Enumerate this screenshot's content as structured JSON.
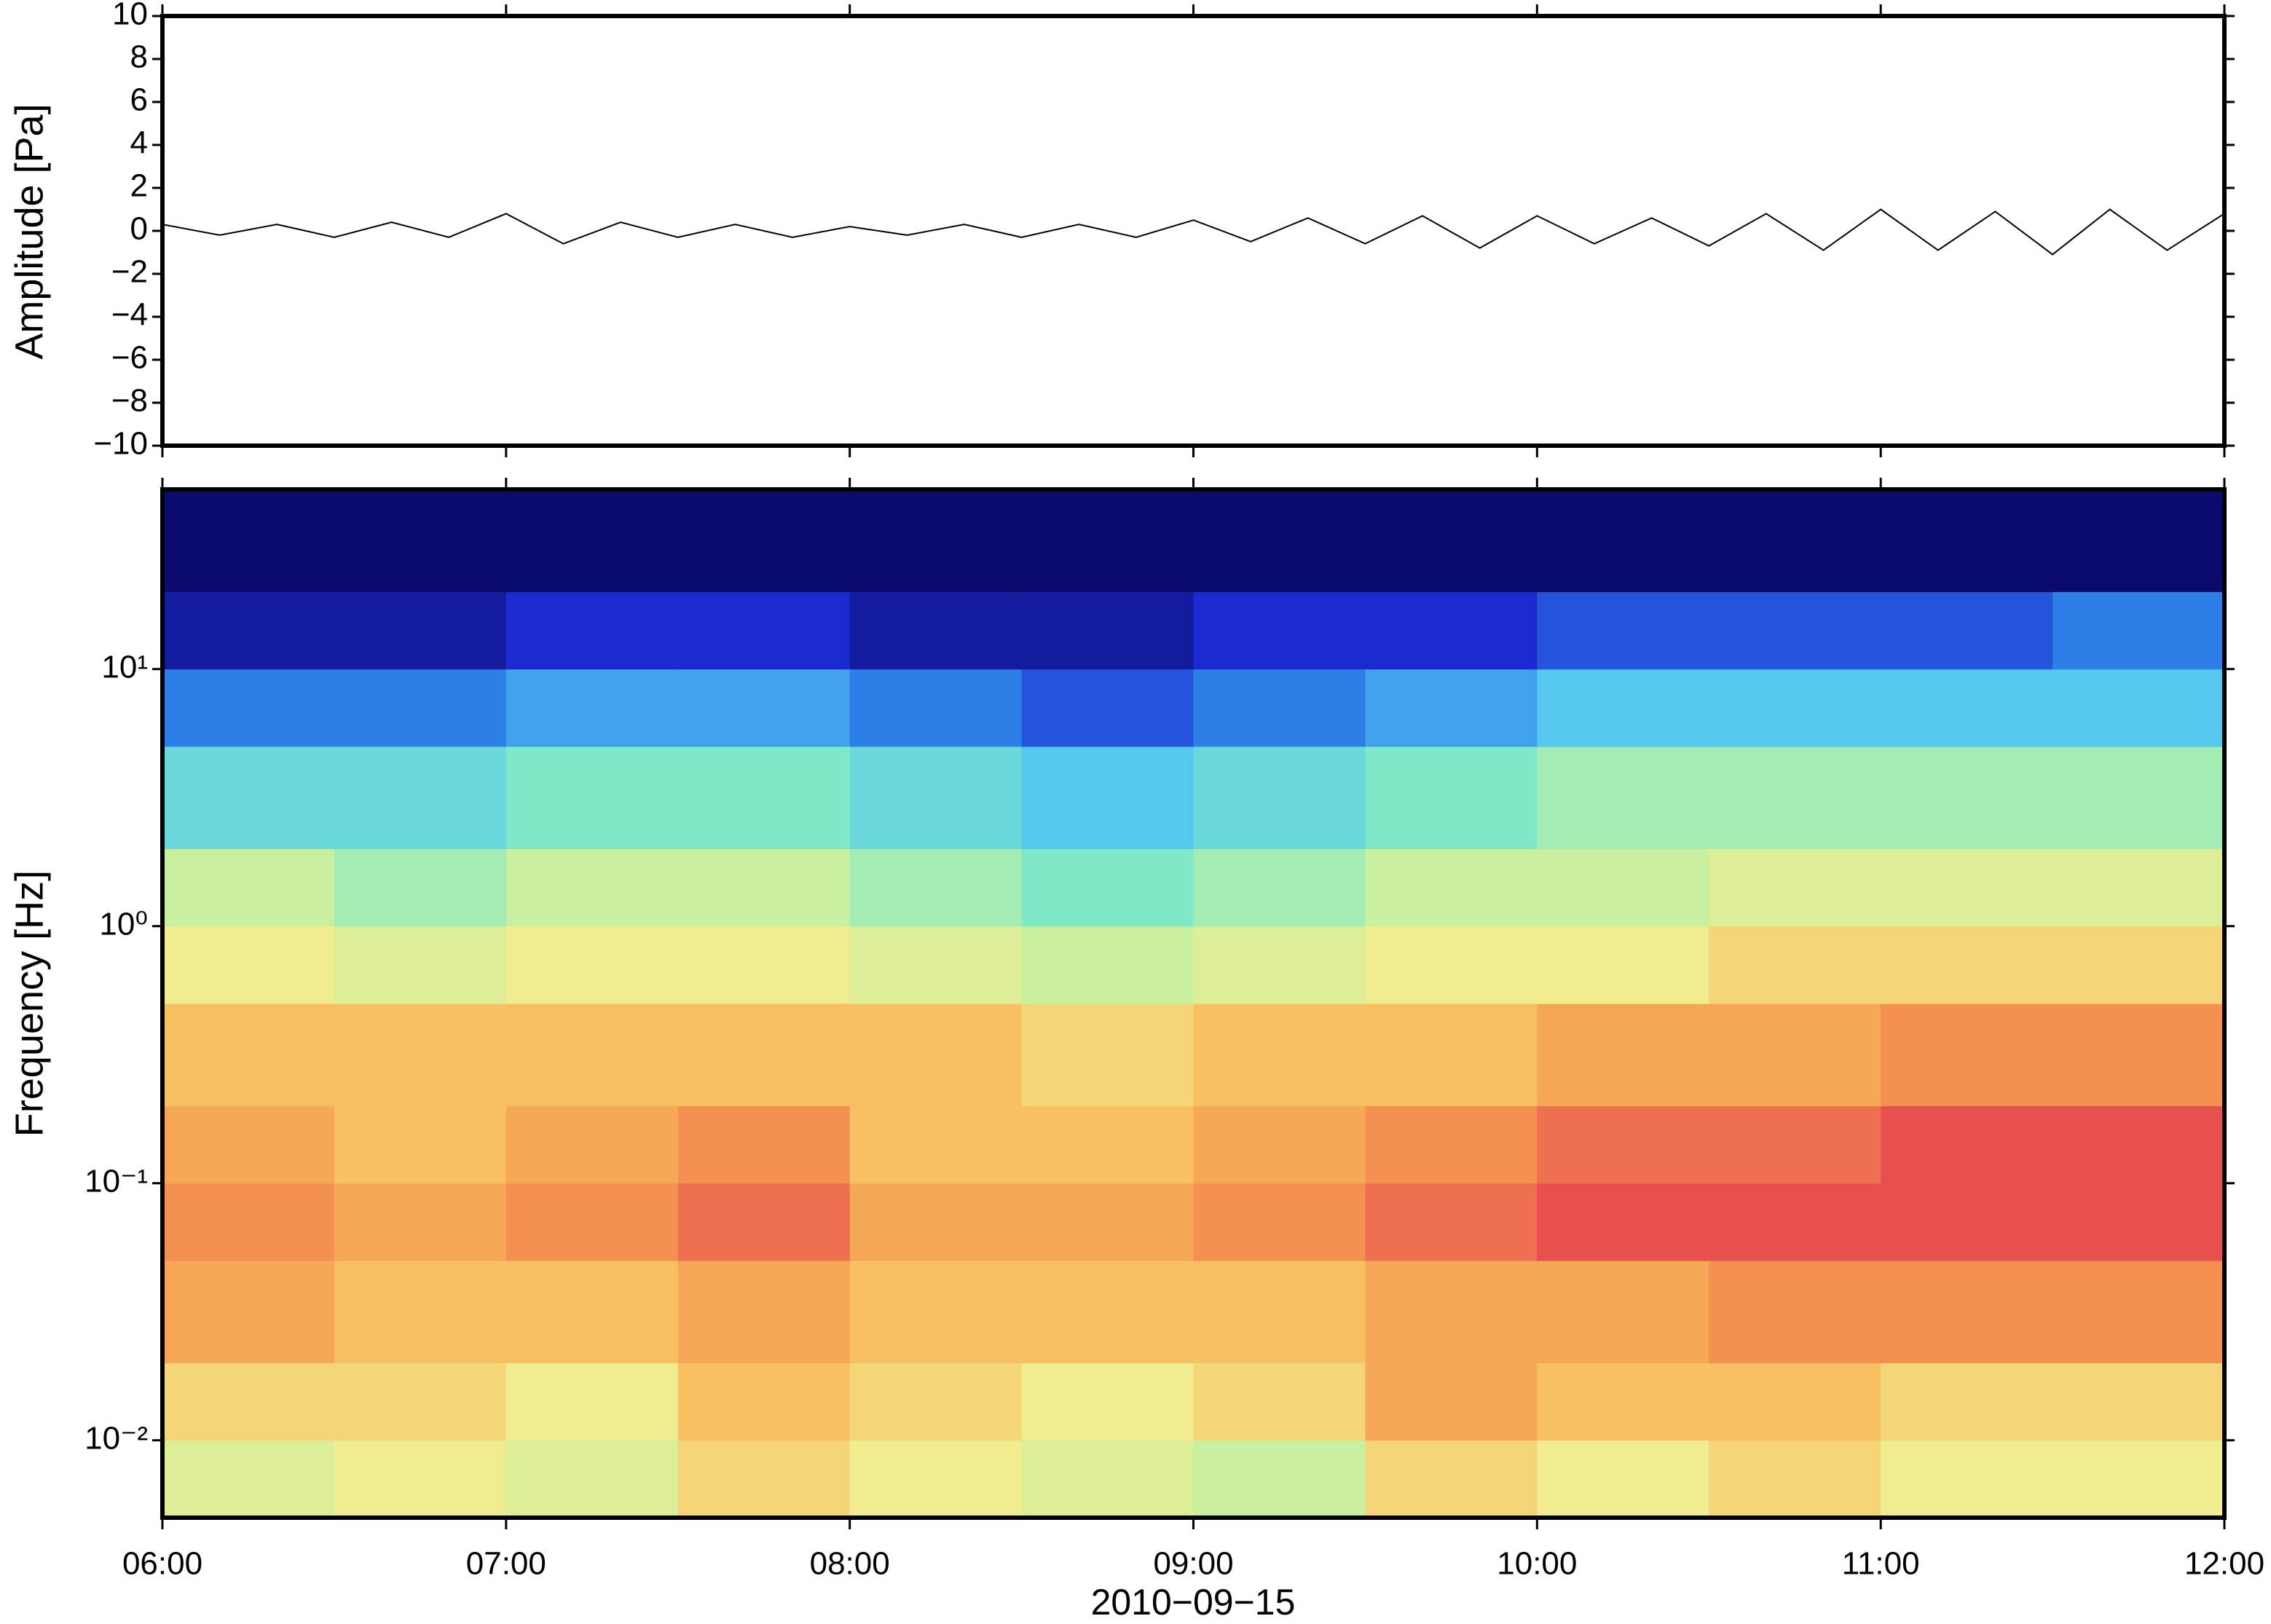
{
  "chart_data": [
    {
      "type": "line",
      "ylabel": "Amplitude [Pa]",
      "x": [
        "06:00",
        "06:10",
        "06:20",
        "06:30",
        "06:40",
        "06:50",
        "07:00",
        "07:10",
        "07:20",
        "07:30",
        "07:40",
        "07:50",
        "08:00",
        "08:10",
        "08:20",
        "08:30",
        "08:40",
        "08:50",
        "09:00",
        "09:10",
        "09:20",
        "09:30",
        "09:40",
        "09:50",
        "10:00",
        "10:10",
        "10:20",
        "10:30",
        "10:40",
        "10:50",
        "11:00",
        "11:10",
        "11:20",
        "11:30",
        "11:40",
        "11:50",
        "12:00"
      ],
      "series": [
        {
          "color": "#000000",
          "values": [
            0.3,
            -0.2,
            0.3,
            -0.3,
            0.4,
            -0.3,
            0.8,
            -0.6,
            0.4,
            -0.3,
            0.3,
            -0.3,
            0.2,
            -0.2,
            0.3,
            -0.3,
            0.3,
            -0.3,
            0.5,
            -0.5,
            0.6,
            -0.6,
            0.7,
            -0.8,
            0.7,
            -0.6,
            0.6,
            -0.7,
            0.8,
            -0.9,
            1.0,
            -0.9,
            0.9,
            -1.1,
            1.0,
            -0.9,
            0.8
          ]
        }
      ],
      "xlim": [
        "06:00",
        "12:00"
      ],
      "ylim": [
        -10,
        10
      ],
      "yticks": [
        {
          "value": -10,
          "label": "−10"
        },
        {
          "value": -8,
          "label": "−8"
        },
        {
          "value": -6,
          "label": "−6"
        },
        {
          "value": -4,
          "label": "−4"
        },
        {
          "value": -2,
          "label": "−2"
        },
        0,
        2,
        4,
        6,
        8,
        10
      ]
    },
    {
      "type": "heatmap",
      "ylabel": "Frequency [Hz]",
      "xlabel": "2010−09−15",
      "xlim": [
        "06:00",
        "12:00"
      ],
      "xticks": [
        "06:00",
        "07:00",
        "08:00",
        "09:00",
        "10:00",
        "11:00",
        "12:00"
      ],
      "ylim": [
        0.005,
        50
      ],
      "log_y": true,
      "yticks": [
        {
          "value": 0.01,
          "label": "10⁻²"
        },
        {
          "value": 0.1,
          "label": "10⁻¹"
        },
        {
          "value": 1,
          "label": "10⁰"
        },
        {
          "value": 10,
          "label": "10¹"
        }
      ],
      "x_bins": [
        "06:00",
        "06:30",
        "07:00",
        "07:30",
        "08:00",
        "08:30",
        "09:00",
        "09:30",
        "10:00",
        "10:30",
        "11:00",
        "11:30",
        "12:00"
      ],
      "y_bins": [
        0.005,
        0.01,
        0.02,
        0.05,
        0.1,
        0.2,
        0.5,
        1,
        2,
        5,
        10,
        20,
        50
      ],
      "colormap": [
        "#0b0b6e",
        "#1a2ad0",
        "#2e7ee8",
        "#55c8f0",
        "#7ee8c8",
        "#c8f0a0",
        "#f0ec90",
        "#f8c060",
        "#f49050",
        "#e85050"
      ],
      "values": [
        [
          5.5,
          6,
          5.5,
          6.5,
          6,
          5.5,
          5,
          6.5,
          6,
          6.5,
          6,
          6
        ],
        [
          6.5,
          6.5,
          6,
          7,
          6.5,
          6,
          6.5,
          7.5,
          7,
          7,
          6.5,
          6.5
        ],
        [
          7.5,
          7,
          7,
          7.5,
          7,
          7,
          7,
          7.5,
          7.5,
          8,
          8,
          8
        ],
        [
          8,
          7.5,
          8,
          8.5,
          7.5,
          7.5,
          8,
          8.5,
          9,
          9,
          9,
          9
        ],
        [
          7.5,
          7,
          7.5,
          8,
          7,
          7,
          7.5,
          8,
          8.5,
          8.5,
          9,
          9
        ],
        [
          7,
          7,
          7,
          7,
          7,
          6.5,
          7,
          7,
          7.5,
          7.5,
          8,
          8
        ],
        [
          6,
          5.5,
          6,
          6,
          5.5,
          5,
          5.5,
          6,
          6,
          6.5,
          6.5,
          6.5
        ],
        [
          5,
          4.5,
          5,
          5,
          4.5,
          4,
          4.5,
          5,
          5,
          5.5,
          5.5,
          5.5
        ],
        [
          3.5,
          3.5,
          4,
          4,
          3.5,
          3,
          3.5,
          4,
          4.5,
          4.5,
          4.5,
          4.5
        ],
        [
          2,
          2,
          2.5,
          2.5,
          2,
          1.5,
          2,
          2.5,
          3,
          3,
          3,
          3
        ],
        [
          0.5,
          0.5,
          1,
          1,
          0.5,
          0.5,
          1,
          1,
          1.5,
          1.5,
          1.5,
          2
        ],
        [
          0,
          0,
          0,
          0,
          0,
          0,
          0,
          0,
          0,
          0,
          0,
          0
        ]
      ]
    }
  ]
}
